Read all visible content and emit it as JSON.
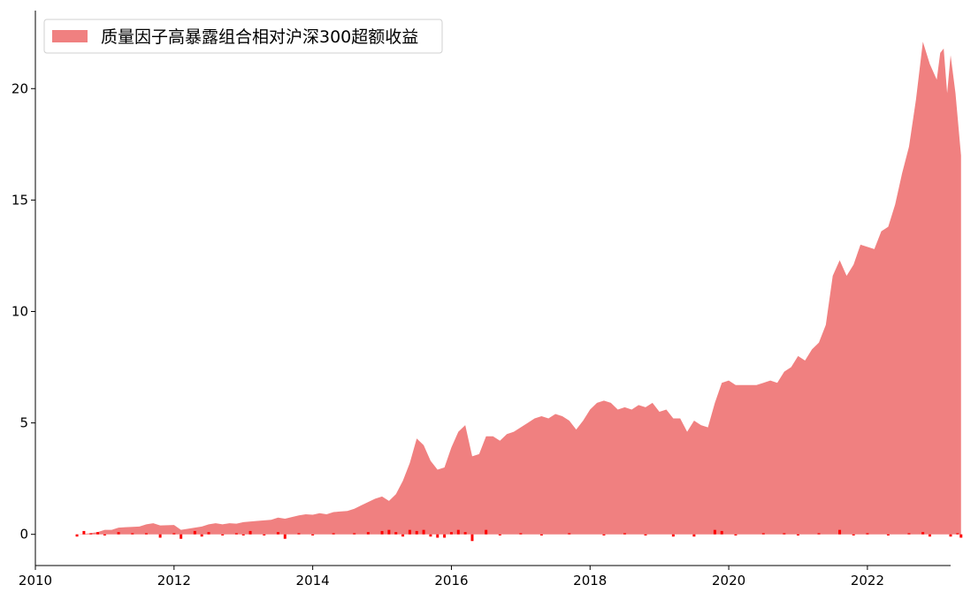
{
  "chart_data": {
    "type": "area",
    "title": "",
    "xlabel": "",
    "ylabel": "",
    "xlim": [
      2010.0,
      2023.2
    ],
    "ylim": [
      -1.4,
      23.5
    ],
    "x_ticks": [
      "2010",
      "2012",
      "2014",
      "2016",
      "2018",
      "2020",
      "2022"
    ],
    "y_ticks": [
      "0",
      "5",
      "10",
      "15",
      "20"
    ],
    "legend": {
      "position": "top-left"
    },
    "series": [
      {
        "name": "质量因子高暴露组合相对沪深300超额收益",
        "kind": "area",
        "color": "#f08080",
        "points": [
          [
            2010.6,
            0.0
          ],
          [
            2010.7,
            0.02
          ],
          [
            2010.8,
            0.05
          ],
          [
            2010.9,
            0.1
          ],
          [
            2011.0,
            0.2
          ],
          [
            2011.1,
            0.2
          ],
          [
            2011.2,
            0.3
          ],
          [
            2011.3,
            0.32
          ],
          [
            2011.5,
            0.35
          ],
          [
            2011.6,
            0.45
          ],
          [
            2011.7,
            0.5
          ],
          [
            2011.8,
            0.4
          ],
          [
            2012.0,
            0.42
          ],
          [
            2012.1,
            0.2
          ],
          [
            2012.2,
            0.25
          ],
          [
            2012.4,
            0.35
          ],
          [
            2012.5,
            0.45
          ],
          [
            2012.6,
            0.5
          ],
          [
            2012.7,
            0.45
          ],
          [
            2012.8,
            0.5
          ],
          [
            2012.9,
            0.48
          ],
          [
            2013.0,
            0.55
          ],
          [
            2013.2,
            0.6
          ],
          [
            2013.4,
            0.65
          ],
          [
            2013.5,
            0.75
          ],
          [
            2013.6,
            0.7
          ],
          [
            2013.8,
            0.85
          ],
          [
            2013.9,
            0.9
          ],
          [
            2014.0,
            0.88
          ],
          [
            2014.1,
            0.95
          ],
          [
            2014.2,
            0.9
          ],
          [
            2014.3,
            1.0
          ],
          [
            2014.5,
            1.05
          ],
          [
            2014.6,
            1.15
          ],
          [
            2014.7,
            1.3
          ],
          [
            2014.8,
            1.45
          ],
          [
            2014.9,
            1.6
          ],
          [
            2015.0,
            1.7
          ],
          [
            2015.1,
            1.5
          ],
          [
            2015.2,
            1.8
          ],
          [
            2015.3,
            2.4
          ],
          [
            2015.4,
            3.2
          ],
          [
            2015.5,
            4.3
          ],
          [
            2015.6,
            4.0
          ],
          [
            2015.7,
            3.3
          ],
          [
            2015.8,
            2.9
          ],
          [
            2015.9,
            3.0
          ],
          [
            2016.0,
            3.9
          ],
          [
            2016.1,
            4.6
          ],
          [
            2016.2,
            4.9
          ],
          [
            2016.3,
            3.5
          ],
          [
            2016.4,
            3.6
          ],
          [
            2016.5,
            4.4
          ],
          [
            2016.6,
            4.4
          ],
          [
            2016.7,
            4.2
          ],
          [
            2016.8,
            4.5
          ],
          [
            2016.9,
            4.6
          ],
          [
            2017.0,
            4.8
          ],
          [
            2017.1,
            5.0
          ],
          [
            2017.2,
            5.2
          ],
          [
            2017.3,
            5.3
          ],
          [
            2017.4,
            5.2
          ],
          [
            2017.5,
            5.4
          ],
          [
            2017.6,
            5.3
          ],
          [
            2017.7,
            5.1
          ],
          [
            2017.8,
            4.7
          ],
          [
            2017.9,
            5.1
          ],
          [
            2018.0,
            5.6
          ],
          [
            2018.1,
            5.9
          ],
          [
            2018.2,
            6.0
          ],
          [
            2018.3,
            5.9
          ],
          [
            2018.4,
            5.6
          ],
          [
            2018.5,
            5.7
          ],
          [
            2018.6,
            5.6
          ],
          [
            2018.7,
            5.8
          ],
          [
            2018.8,
            5.7
          ],
          [
            2018.9,
            5.9
          ],
          [
            2019.0,
            5.5
          ],
          [
            2019.1,
            5.6
          ],
          [
            2019.2,
            5.2
          ],
          [
            2019.3,
            5.2
          ],
          [
            2019.4,
            4.6
          ],
          [
            2019.5,
            5.1
          ],
          [
            2019.6,
            4.9
          ],
          [
            2019.7,
            4.8
          ],
          [
            2019.8,
            5.9
          ],
          [
            2019.9,
            6.8
          ],
          [
            2020.0,
            6.9
          ],
          [
            2020.1,
            6.7
          ],
          [
            2020.2,
            6.7
          ],
          [
            2020.3,
            6.7
          ],
          [
            2020.4,
            6.7
          ],
          [
            2020.5,
            6.8
          ],
          [
            2020.6,
            6.9
          ],
          [
            2020.7,
            6.8
          ],
          [
            2020.8,
            7.3
          ],
          [
            2020.9,
            7.5
          ],
          [
            2021.0,
            8.0
          ],
          [
            2021.1,
            7.8
          ],
          [
            2021.2,
            8.3
          ],
          [
            2021.3,
            8.6
          ],
          [
            2021.4,
            9.4
          ],
          [
            2021.5,
            11.6
          ],
          [
            2021.6,
            12.3
          ],
          [
            2021.7,
            11.6
          ],
          [
            2021.8,
            12.1
          ],
          [
            2021.9,
            13.0
          ],
          [
            2022.0,
            12.9
          ],
          [
            2022.1,
            12.8
          ],
          [
            2022.2,
            13.6
          ],
          [
            2022.3,
            13.8
          ],
          [
            2022.4,
            14.8
          ],
          [
            2022.5,
            16.2
          ],
          [
            2022.6,
            17.4
          ],
          [
            2022.7,
            19.5
          ],
          [
            2022.8,
            22.1
          ],
          [
            2022.9,
            21.1
          ],
          [
            2023.0,
            20.4
          ],
          [
            2023.05,
            21.6
          ],
          [
            2023.1,
            21.8
          ],
          [
            2023.15,
            19.8
          ],
          [
            2023.2,
            21.5
          ],
          [
            2023.27,
            19.8
          ],
          [
            2023.35,
            17.0
          ]
        ]
      },
      {
        "name": "",
        "kind": "bar",
        "color": "#ff0000",
        "points": [
          [
            2010.6,
            -0.1
          ],
          [
            2010.7,
            0.15
          ],
          [
            2010.8,
            0.05
          ],
          [
            2010.9,
            0.1
          ],
          [
            2011.0,
            -0.05
          ],
          [
            2011.2,
            0.1
          ],
          [
            2011.4,
            0.05
          ],
          [
            2011.6,
            0.05
          ],
          [
            2011.8,
            -0.15
          ],
          [
            2012.0,
            0.05
          ],
          [
            2012.1,
            -0.2
          ],
          [
            2012.3,
            0.15
          ],
          [
            2012.4,
            -0.1
          ],
          [
            2012.5,
            0.1
          ],
          [
            2012.7,
            -0.05
          ],
          [
            2012.9,
            0.05
          ],
          [
            2013.0,
            -0.05
          ],
          [
            2013.1,
            0.15
          ],
          [
            2013.3,
            -0.05
          ],
          [
            2013.5,
            0.1
          ],
          [
            2013.6,
            -0.2
          ],
          [
            2013.8,
            0.05
          ],
          [
            2014.0,
            -0.05
          ],
          [
            2014.3,
            0.05
          ],
          [
            2014.6,
            0.05
          ],
          [
            2014.8,
            0.1
          ],
          [
            2015.0,
            0.15
          ],
          [
            2015.1,
            0.2
          ],
          [
            2015.2,
            0.1
          ],
          [
            2015.3,
            -0.1
          ],
          [
            2015.4,
            0.2
          ],
          [
            2015.5,
            0.15
          ],
          [
            2015.6,
            0.2
          ],
          [
            2015.7,
            -0.1
          ],
          [
            2015.8,
            -0.15
          ],
          [
            2015.9,
            -0.15
          ],
          [
            2016.0,
            0.1
          ],
          [
            2016.1,
            0.2
          ],
          [
            2016.2,
            0.1
          ],
          [
            2016.3,
            -0.3
          ],
          [
            2016.5,
            0.2
          ],
          [
            2016.7,
            -0.05
          ],
          [
            2017.0,
            0.05
          ],
          [
            2017.3,
            -0.05
          ],
          [
            2017.7,
            0.05
          ],
          [
            2018.2,
            -0.05
          ],
          [
            2018.5,
            0.05
          ],
          [
            2018.8,
            -0.05
          ],
          [
            2019.2,
            -0.1
          ],
          [
            2019.5,
            -0.1
          ],
          [
            2019.8,
            0.2
          ],
          [
            2019.9,
            0.15
          ],
          [
            2020.1,
            -0.05
          ],
          [
            2020.5,
            0.05
          ],
          [
            2020.8,
            0.05
          ],
          [
            2021.0,
            -0.05
          ],
          [
            2021.3,
            0.05
          ],
          [
            2021.6,
            0.2
          ],
          [
            2021.8,
            -0.05
          ],
          [
            2022.0,
            0.05
          ],
          [
            2022.3,
            -0.05
          ],
          [
            2022.6,
            0.05
          ],
          [
            2022.8,
            0.1
          ],
          [
            2022.9,
            -0.1
          ],
          [
            2023.2,
            -0.1
          ],
          [
            2023.3,
            0.05
          ],
          [
            2023.35,
            -0.15
          ]
        ]
      }
    ]
  }
}
